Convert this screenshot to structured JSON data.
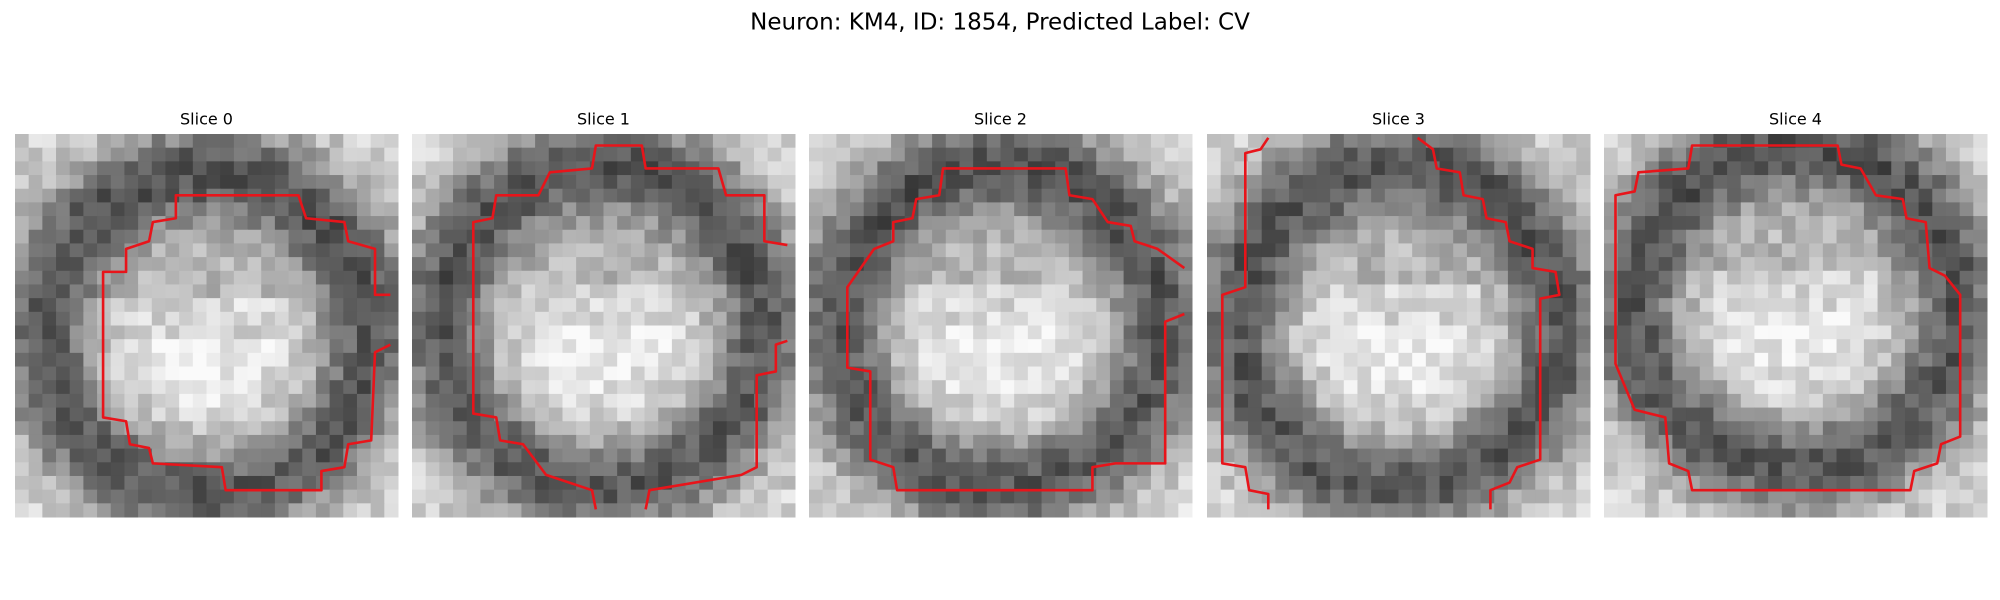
{
  "title": "Neuron: KM4, ID: 1854, Predicted Label: CV",
  "panels": [
    {
      "label": "Slice 0"
    },
    {
      "label": "Slice 1"
    },
    {
      "label": "Slice 2"
    },
    {
      "label": "Slice 3"
    },
    {
      "label": "Slice 4"
    }
  ]
}
